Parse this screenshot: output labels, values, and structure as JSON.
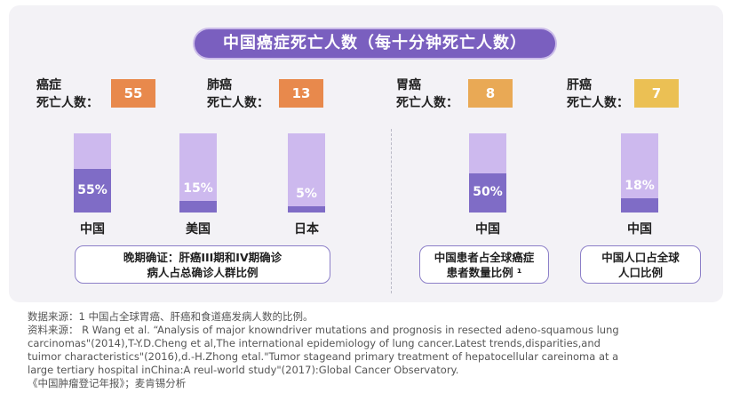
{
  "title": "中国癌症死亡人数（每十分钟死亡人数）",
  "metrics": [
    {
      "line1": "癌症",
      "line2": "死亡人数：",
      "value": "55",
      "color": "#e8894c"
    },
    {
      "line1": "肺癌",
      "line2": "死亡人数：",
      "value": "13",
      "color": "#e8894c"
    },
    {
      "line1": "胃癌",
      "line2": "死亡人数：",
      "value": "8",
      "color": "#e9a955"
    },
    {
      "line1": "肝癌",
      "line2": "死亡人数：",
      "value": "7",
      "color": "#ebc054"
    }
  ],
  "chart_data": {
    "type": "bar",
    "categories": [
      "中国",
      "美国",
      "日本",
      "中国",
      "中国"
    ],
    "values": [
      55,
      15,
      5,
      50,
      18
    ],
    "value_labels": [
      "55%",
      "15%",
      "5%",
      "50%",
      "18%"
    ],
    "ylim": [
      0,
      100
    ]
  },
  "notes": [
    {
      "line1": "晚期确证：肝癌III期和IV期确诊",
      "line2": "病人占总确诊人群比例"
    },
    {
      "line1": "中国患者占全球癌症",
      "line2": "患者数量比例 ¹"
    },
    {
      "line1": "中国人口占全球",
      "line2": "人口比例"
    }
  ],
  "colors": {
    "bar_empty": "#cdb9ee",
    "bar_fill": "#7f6cc6",
    "title_bg": "#7a5fbf"
  },
  "footer": [
    "数据来源：1 中国占全球胃癌、肝癌和食道癌发病人数的比例。",
    "资料来源： R Wang et al. “Analysis of major knowndriver mutations and prognosis in resected adeno-squamous lung",
    "carcinomas\"(2014),T-Y.D.Cheng et al,The international epidemiology of lung cancer.Latest trends,disparities,and",
    "tuimor characteristics\"(2016),d.-H.Zhong etal.\"Tumor stageand primary treatment of hepatocellular careinoma at a",
    "large tertiary hospital inChina:A reul-world study\"(2017):Global Cancer Observatory.",
    "《中国肿瘤登记年报》；麦肯锡分析"
  ]
}
